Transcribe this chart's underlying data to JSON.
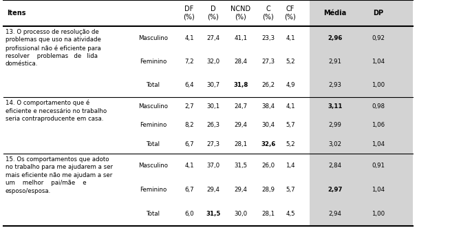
{
  "items": [
    {
      "item_text": [
        "13. O processo de resolução de",
        "problemas que uso na atividade",
        "profissional não é eficiente para",
        "resolver    problemas   de   lida",
        "doméstica."
      ],
      "rows": [
        {
          "group": "Masculino",
          "DF": "4,1",
          "D": "27,4",
          "NCND": "41,1",
          "C": "23,3",
          "CF": "4,1",
          "Media": "2,96",
          "DP": "0,92",
          "bold_media": true,
          "bold_ncnd": false,
          "bold_c": false,
          "bold_d": false,
          "bold_df": false
        },
        {
          "group": "Feminino",
          "DF": "7,2",
          "D": "32,0",
          "NCND": "28,4",
          "C": "27,3",
          "CF": "5,2",
          "Media": "2,91",
          "DP": "1,04",
          "bold_media": false,
          "bold_ncnd": false,
          "bold_c": false,
          "bold_d": false,
          "bold_df": false
        },
        {
          "group": "Total",
          "DF": "6,4",
          "D": "30,7",
          "NCND": "31,8",
          "C": "26,2",
          "CF": "4,9",
          "Media": "2,93",
          "DP": "1,00",
          "bold_media": false,
          "bold_ncnd": true,
          "bold_c": false,
          "bold_d": false,
          "bold_df": false
        }
      ],
      "item_row": 1
    },
    {
      "item_text": [
        "14. O comportamento que é",
        "eficiente e necessário no trabalho",
        "seria contraproducente em casa."
      ],
      "rows": [
        {
          "group": "Masculino",
          "DF": "2,7",
          "D": "30,1",
          "NCND": "24,7",
          "C": "38,4",
          "CF": "4,1",
          "Media": "3,11",
          "DP": "0,98",
          "bold_media": true,
          "bold_ncnd": false,
          "bold_c": false,
          "bold_d": false,
          "bold_df": false
        },
        {
          "group": "Feminino",
          "DF": "8,2",
          "D": "26,3",
          "NCND": "29,4",
          "C": "30,4",
          "CF": "5,7",
          "Media": "2,99",
          "DP": "1,06",
          "bold_media": false,
          "bold_ncnd": false,
          "bold_c": false,
          "bold_d": false,
          "bold_df": false
        },
        {
          "group": "Total",
          "DF": "6,7",
          "D": "27,3",
          "NCND": "28,1",
          "C": "32,6",
          "CF": "5,2",
          "Media": "3,02",
          "DP": "1,04",
          "bold_media": false,
          "bold_ncnd": false,
          "bold_c": true,
          "bold_d": false,
          "bold_df": false
        }
      ],
      "item_row": 1
    },
    {
      "item_text": [
        "15. Os comportamentos que adoto",
        "no trabalho para me ajudarem a ser",
        "mais eficiente não me ajudam a ser",
        "um    melhor    pai/mãe    e",
        "esposo/esposa."
      ],
      "rows": [
        {
          "group": "Masculino",
          "DF": "4,1",
          "D": "37,0",
          "NCND": "31,5",
          "C": "26,0",
          "CF": "1,4",
          "Media": "2,84",
          "DP": "0,91",
          "bold_media": false,
          "bold_ncnd": false,
          "bold_c": false,
          "bold_d": false,
          "bold_df": false
        },
        {
          "group": "Feminino",
          "DF": "6,7",
          "D": "29,4",
          "NCND": "29,4",
          "C": "28,9",
          "CF": "5,7",
          "Media": "2,97",
          "DP": "1,04",
          "bold_media": true,
          "bold_ncnd": false,
          "bold_c": false,
          "bold_d": false,
          "bold_df": false
        },
        {
          "group": "Total",
          "DF": "6,0",
          "D": "31,5",
          "NCND": "30,0",
          "C": "28,1",
          "CF": "4,5",
          "Media": "2,94",
          "DP": "1,00",
          "bold_media": false,
          "bold_ncnd": false,
          "bold_c": false,
          "bold_d": true,
          "bold_df": false
        }
      ],
      "item_row": 1
    }
  ],
  "media_dp_bg": "#d3d3d3",
  "fig_width": 6.7,
  "fig_height": 3.31,
  "font_size": 6.2,
  "header_font_size": 7.0
}
